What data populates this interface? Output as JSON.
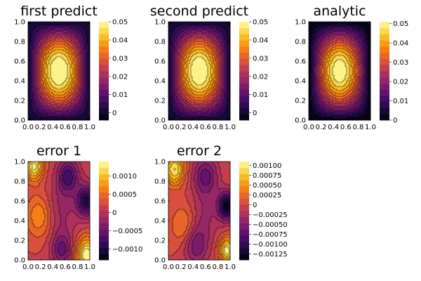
{
  "chart_data": [
    {
      "type": "heatmap",
      "title": "first predict",
      "field": "predict1",
      "xticks": [
        "0.0",
        "0.2",
        "0.4",
        "0.6",
        "0.8",
        "1.0"
      ],
      "yticks": [
        "0.0",
        "0.2",
        "0.4",
        "0.6",
        "0.8",
        "1.0"
      ],
      "xlim": [
        0,
        1
      ],
      "ylim": [
        0,
        1
      ],
      "clim": [
        -0.004,
        0.05
      ],
      "colorbar_ticks": [
        {
          "label": "0",
          "value": 0
        },
        {
          "label": "0.01",
          "value": 0.01
        },
        {
          "label": "0.02",
          "value": 0.02
        },
        {
          "label": "0.03",
          "value": 0.03
        },
        {
          "label": "0.04",
          "value": 0.04
        },
        {
          "label": "0.05",
          "value": 0.05
        }
      ]
    },
    {
      "type": "heatmap",
      "title": "second predict",
      "field": "predict2",
      "xticks": [
        "0.0",
        "0.2",
        "0.4",
        "0.6",
        "0.8",
        "1.0"
      ],
      "yticks": [
        "0.0",
        "0.2",
        "0.4",
        "0.6",
        "0.8",
        "1.0"
      ],
      "xlim": [
        0,
        1
      ],
      "ylim": [
        0,
        1
      ],
      "clim": [
        -0.004,
        0.05
      ],
      "colorbar_ticks": [
        {
          "label": "0",
          "value": 0
        },
        {
          "label": "0.01",
          "value": 0.01
        },
        {
          "label": "0.02",
          "value": 0.02
        },
        {
          "label": "0.03",
          "value": 0.03
        },
        {
          "label": "0.04",
          "value": 0.04
        },
        {
          "label": "0.05",
          "value": 0.05
        }
      ]
    },
    {
      "type": "heatmap",
      "title": "analytic",
      "field": "analytic",
      "xticks": [
        "0.0",
        "0.2",
        "0.4",
        "0.6",
        "0.8",
        "1.0"
      ],
      "yticks": [
        "0.0",
        "0.2",
        "0.4",
        "0.6",
        "0.8",
        "1.0"
      ],
      "xlim": [
        0,
        1
      ],
      "ylim": [
        0,
        1
      ],
      "clim": [
        0,
        0.051
      ],
      "colorbar_ticks": [
        {
          "label": "0",
          "value": 0
        },
        {
          "label": "0.01",
          "value": 0.01
        },
        {
          "label": "0.02",
          "value": 0.02
        },
        {
          "label": "0.03",
          "value": 0.03
        },
        {
          "label": "0.04",
          "value": 0.04
        },
        {
          "label": "0.05",
          "value": 0.05
        }
      ]
    },
    {
      "type": "heatmap",
      "title": "error 1",
      "field": "error1",
      "xticks": [
        "0.0",
        "0.2",
        "0.4",
        "0.6",
        "0.8",
        "1.0"
      ],
      "yticks": [
        "0.0",
        "0.2",
        "0.4",
        "0.6",
        "0.8",
        "1.0"
      ],
      "xlim": [
        0,
        1
      ],
      "ylim": [
        0,
        1
      ],
      "clim": [
        -0.0013,
        0.0014
      ],
      "colorbar_ticks": [
        {
          "label": "−0.0010",
          "value": -0.001
        },
        {
          "label": "−0.0005",
          "value": -0.0005
        },
        {
          "label": "0",
          "value": 0
        },
        {
          "label": "0.0005",
          "value": 0.0005
        },
        {
          "label": "0.0010",
          "value": 0.001
        }
      ]
    },
    {
      "type": "heatmap",
      "title": "error 2",
      "field": "error2",
      "xticks": [
        "0.0",
        "0.2",
        "0.4",
        "0.6",
        "0.8",
        "1.0"
      ],
      "yticks": [
        "0.0",
        "0.2",
        "0.4",
        "0.6",
        "0.8",
        "1.0"
      ],
      "xlim": [
        0,
        1
      ],
      "ylim": [
        0,
        1
      ],
      "clim": [
        -0.0014,
        0.0011
      ],
      "colorbar_ticks": [
        {
          "label": "−0.00125",
          "value": -0.00125
        },
        {
          "label": "−0.00100",
          "value": -0.001
        },
        {
          "label": "−0.00075",
          "value": -0.00075
        },
        {
          "label": "−0.00050",
          "value": -0.0005
        },
        {
          "label": "−0.00025",
          "value": -0.00025
        },
        {
          "label": "0",
          "value": 0
        },
        {
          "label": "0.00025",
          "value": 0.00025
        },
        {
          "label": "0.00050",
          "value": 0.0005
        },
        {
          "label": "0.00075",
          "value": 0.00075
        },
        {
          "label": "0.00100",
          "value": 0.001
        }
      ]
    }
  ]
}
